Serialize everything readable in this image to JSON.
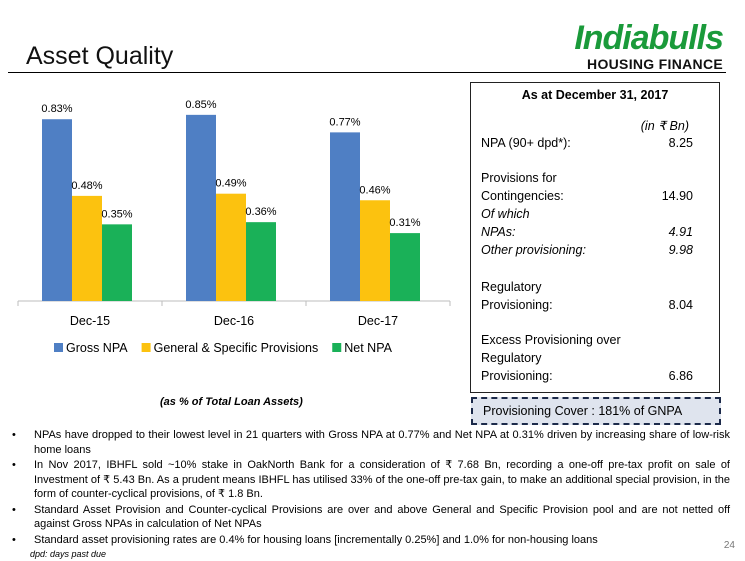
{
  "title": "Asset Quality",
  "logo": {
    "brand": "Indiabulls",
    "subtitle": "HOUSING FINANCE",
    "color": "#1a9a3a"
  },
  "chart_data": {
    "type": "bar",
    "categories": [
      "Dec-15",
      "Dec-16",
      "Dec-17"
    ],
    "series": [
      {
        "name": "Gross NPA",
        "values": [
          0.83,
          0.85,
          0.77
        ],
        "color": "#4f7fc4",
        "labels": [
          "0.83%",
          "0.85%",
          "0.77%"
        ]
      },
      {
        "name": "General & Specific Provisions",
        "values": [
          0.48,
          0.49,
          0.46
        ],
        "color": "#fcc20f",
        "labels": [
          "0.48%",
          "0.49%",
          "0.46%"
        ]
      },
      {
        "name": "Net NPA",
        "values": [
          0.35,
          0.36,
          0.31
        ],
        "color": "#1ab158",
        "labels": [
          "0.35%",
          "0.36%",
          "0.31%"
        ]
      }
    ],
    "ylim": [
      0,
      1.0
    ],
    "legend": "bottom",
    "caption": "(as % of Total Loan Assets)"
  },
  "panel": {
    "title": "As at December 31, 2017",
    "unit": "(in ₹ Bn)",
    "npa_label": "NPA (90+ dpd*):",
    "npa_value": "8.25",
    "prov_label_1": "Provisions for",
    "prov_label_2": "Contingencies:",
    "prov_value": "14.90",
    "of_which": "Of which",
    "npas_label": "NPAs:",
    "npas_value": "4.91",
    "other_label": "Other provisioning:",
    "other_value": "9.98",
    "reg_label_1": "Regulatory",
    "reg_label_2": "Provisioning:",
    "reg_value": "8.04",
    "excess_label_1": "Excess Provisioning over",
    "excess_label_2": "Regulatory",
    "excess_label_3": "Provisioning:",
    "excess_value": "6.86"
  },
  "cover": "Provisioning Cover : 181% of GNPA",
  "bullets": [
    "NPAs have dropped to their lowest level in 21 quarters with Gross NPA at 0.77% and Net NPA at 0.31% driven by increasing share of low-risk home loans",
    "In Nov 2017, IBHFL sold ~10% stake in OakNorth Bank for a consideration of ₹ 7.68 Bn, recording a one-off pre-tax profit on sale of Investment of ₹ 5.43 Bn. As a prudent means IBHFL has utilised 33% of the one-off pre-tax gain, to make an additional special provision, in the form of counter-cyclical provisions, of ₹ 1.8 Bn.",
    "Standard Asset Provision and Counter-cyclical Provisions are over and above General and Specific Provision pool and are not netted off against Gross NPAs in calculation of Net NPAs",
    "Standard asset provisioning rates are 0.4% for housing loans [incrementally 0.25%] and 1.0% for non-housing loans"
  ],
  "footnote": "dpd: days past due",
  "page_number": "24"
}
